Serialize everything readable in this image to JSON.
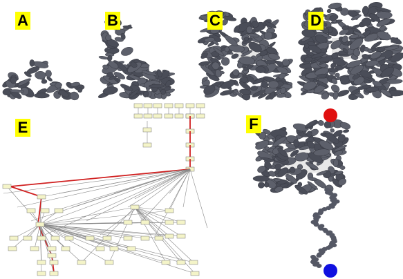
{
  "panels": {
    "a": "A",
    "b": "B",
    "c": "C",
    "d": "D",
    "e": "E",
    "f": "F"
  }
}
